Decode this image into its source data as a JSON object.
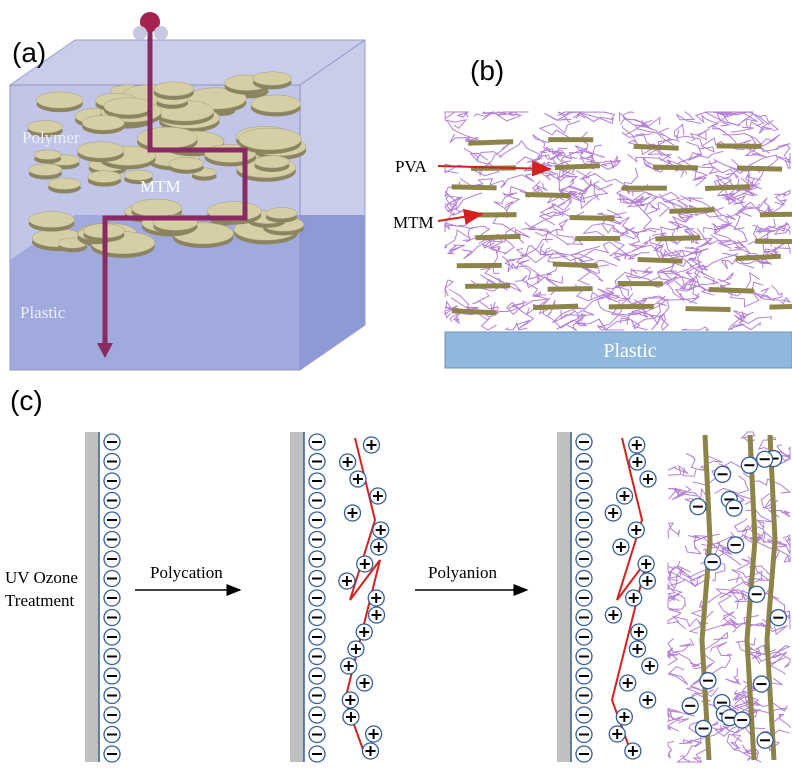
{
  "panel_a": {
    "label": "(a)",
    "polymer": "Polymer",
    "mtm": "MTM",
    "plastic": "Plastic"
  },
  "panel_b": {
    "label": "(b)",
    "pva": "PVA",
    "mtm": "MTM",
    "plastic": "Plastic"
  },
  "panel_c": {
    "label": "(c)",
    "treatment": [
      "UV Ozone",
      "Treatment"
    ],
    "step1": "Polycation",
    "step2": "Polyanion"
  }
}
